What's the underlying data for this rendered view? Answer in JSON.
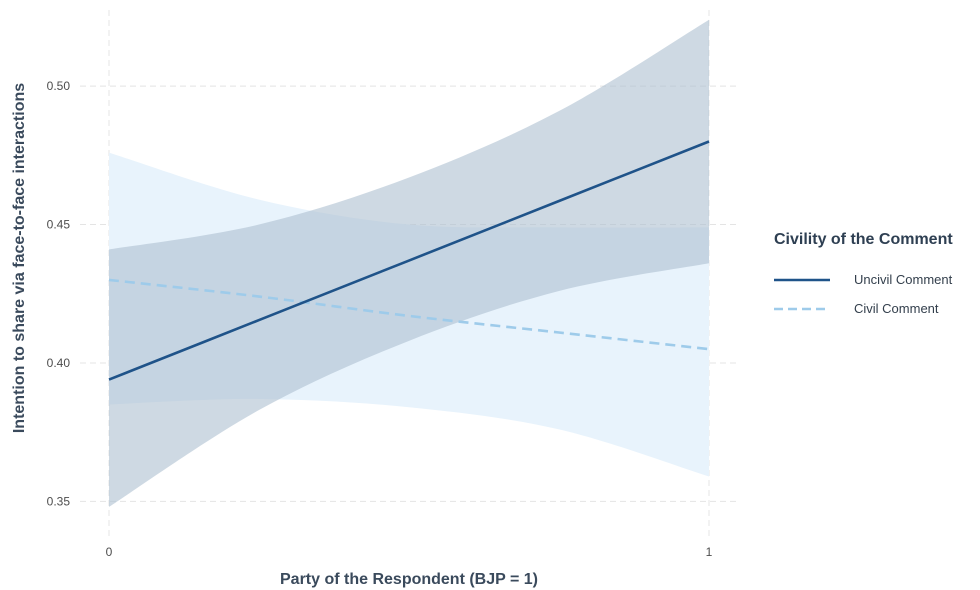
{
  "chart_data": {
    "type": "line",
    "title": "",
    "xlabel": "Party of the Respondent (BJP = 1)",
    "ylabel": "Intention to share via face-to-face interactions",
    "xlim": [
      0,
      1
    ],
    "ylim": [
      0.3375,
      0.5275
    ],
    "x_ticks": [
      0,
      1
    ],
    "x_tick_labels": [
      "0",
      "1"
    ],
    "y_ticks": [
      0.35,
      0.4,
      0.45,
      0.5
    ],
    "y_tick_labels": [
      "0.35",
      "0.40",
      "0.45",
      "0.50"
    ],
    "grid": true,
    "legend": {
      "title": "Civility of the Comment",
      "placement": "right"
    },
    "series": [
      {
        "name": "Uncivil Comment",
        "line_style": "solid",
        "color": "#1f5389",
        "ribbon_color": "#c3d0dd",
        "x": [
          0,
          0.25,
          0.5,
          0.75,
          1
        ],
        "y": [
          0.394,
          0.4155,
          0.437,
          0.4585,
          0.48
        ],
        "lower": [
          0.348,
          0.383,
          0.408,
          0.426,
          0.436
        ],
        "upper": [
          0.441,
          0.45,
          0.467,
          0.491,
          0.524
        ]
      },
      {
        "name": "Civil Comment",
        "line_style": "dashed",
        "color": "#9ecbea",
        "ribbon_color": "#e8f3fc",
        "x": [
          0,
          0.25,
          0.5,
          0.75,
          1
        ],
        "y": [
          0.43,
          0.424,
          0.417,
          0.411,
          0.405
        ],
        "lower": [
          0.385,
          0.387,
          0.384,
          0.376,
          0.359
        ],
        "upper": [
          0.476,
          0.459,
          0.45,
          0.449,
          0.449
        ]
      }
    ]
  }
}
